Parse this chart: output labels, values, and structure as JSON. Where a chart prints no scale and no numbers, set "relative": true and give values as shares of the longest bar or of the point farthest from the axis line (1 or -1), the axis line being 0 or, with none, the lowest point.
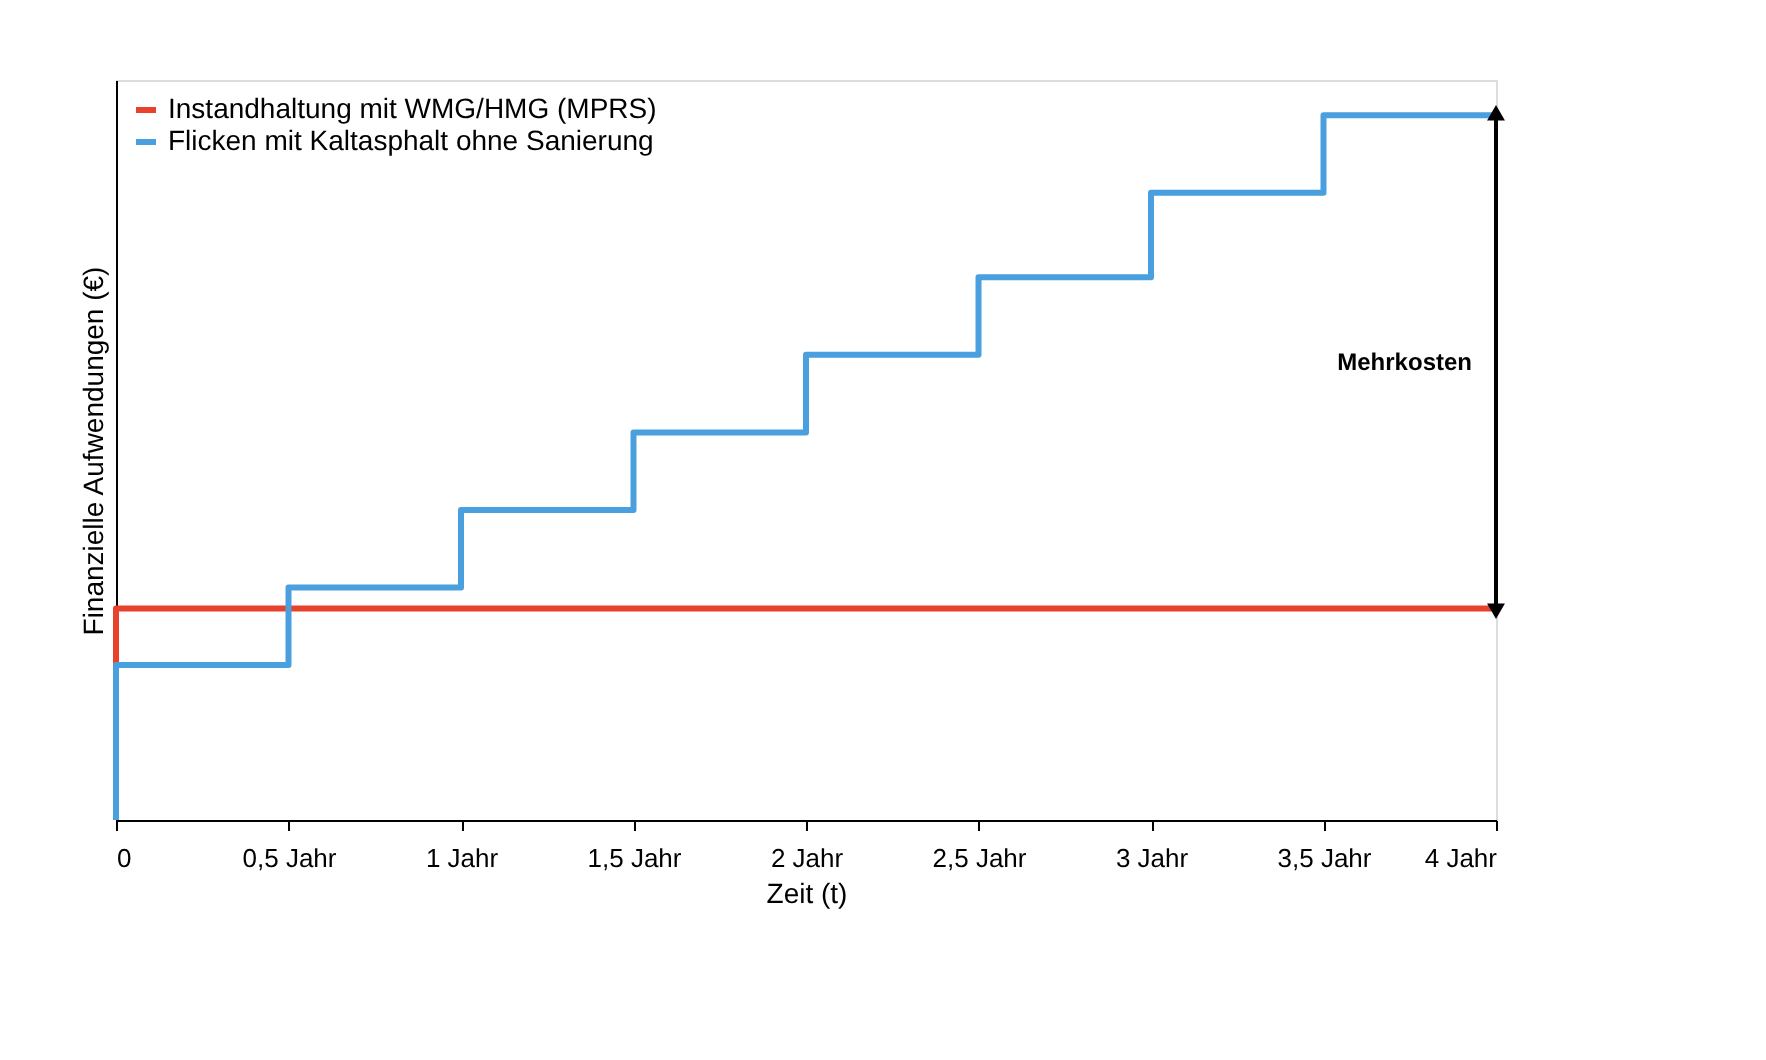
{
  "chart_data": {
    "type": "step",
    "relative": true,
    "xlabel": "Zeit (t)",
    "ylabel": "Finanzielle Aufwendungen (€)",
    "xlim": [
      0,
      4
    ],
    "xticks": [
      0,
      {
        "value": 0.5,
        "label": "0,5 Jahr"
      },
      {
        "value": 1,
        "label": "1 Jahr"
      },
      {
        "value": 1.5,
        "label": "1,5 Jahr"
      },
      {
        "value": 2,
        "label": "2 Jahr"
      },
      {
        "value": 2.5,
        "label": "2,5 Jahr"
      },
      {
        "value": 3,
        "label": "3 Jahr"
      },
      {
        "value": 3.5,
        "label": "3,5 Jahr"
      },
      {
        "value": 4,
        "label": "4 Jahr"
      }
    ],
    "series": [
      {
        "name": "Instandhaltung mit WMG/HMG (MPRS)",
        "color": "#e8412c",
        "x": [
          0,
          0,
          4
        ],
        "values": [
          0,
          0.3,
          0.3
        ]
      },
      {
        "name": "Flicken mit Kaltasphalt ohne Sanierung",
        "color": "#4a9fde",
        "x": [
          0,
          0,
          0.5,
          1,
          1.5,
          2,
          2.5,
          3,
          3.5,
          4
        ],
        "values": [
          0,
          0.22,
          0.33,
          0.44,
          0.55,
          0.66,
          0.77,
          0.89,
          1,
          1
        ]
      }
    ],
    "annotations": [
      "Mehrkosten"
    ],
    "legend": "top left",
    "line_style": "solid",
    "marker": "none"
  }
}
